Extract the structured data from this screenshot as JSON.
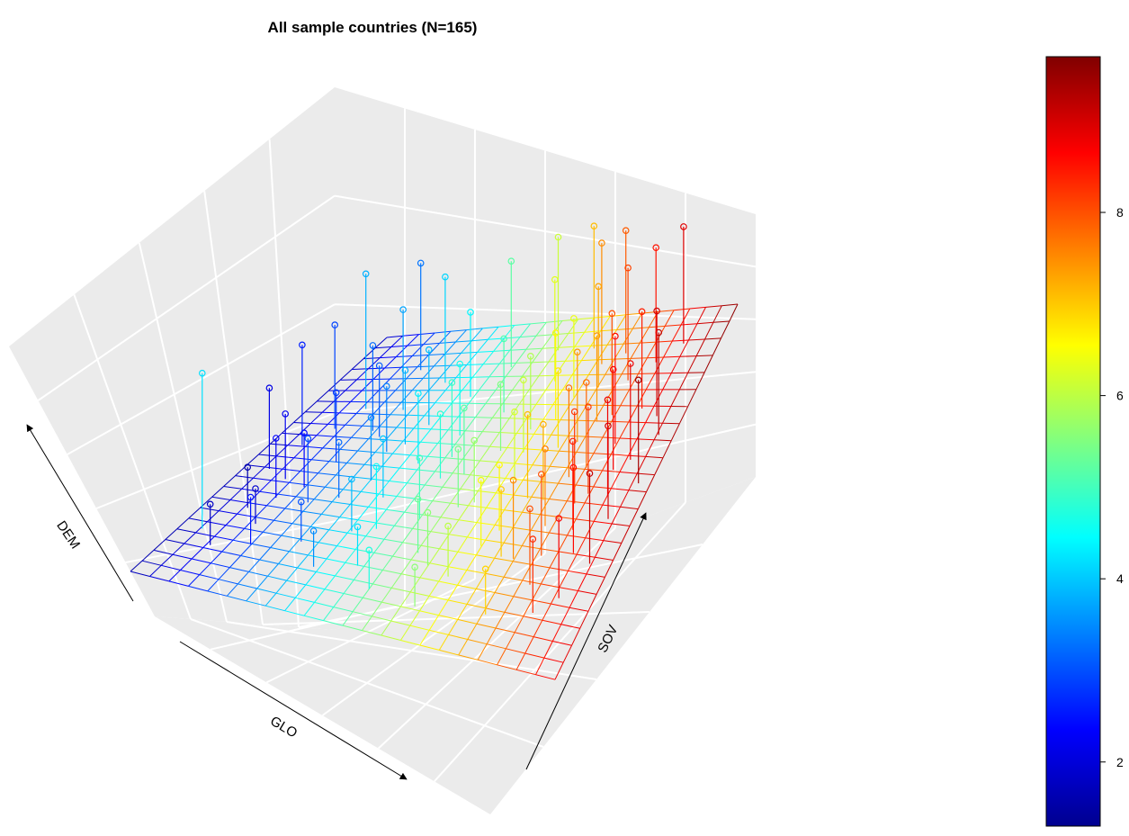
{
  "chart_data": {
    "type": "scatter",
    "title": "All sample countries (N=165)",
    "axes": {
      "x_label": "GLO",
      "y_label": "SOV",
      "z_label": "DEM"
    },
    "grid": true,
    "colorbar": {
      "ticks": [
        "2",
        "4",
        "6",
        "8"
      ],
      "tick_values": [
        2,
        4,
        6,
        8
      ],
      "range": [
        1.3,
        9.7
      ],
      "colors": [
        "#00008F",
        "#0000FF",
        "#0080FF",
        "#00FFFF",
        "#80FF80",
        "#FFFF00",
        "#FF8000",
        "#FF0000",
        "#800000"
      ],
      "placement": "right"
    },
    "points_note": "165 observations with vertical drop lines to fitted regression plane; values estimated visually",
    "points": [
      {
        "glo": 0.1,
        "sov": 0.3,
        "dem": 1.6
      },
      {
        "glo": 0.15,
        "sov": 0.25,
        "dem": 1.9
      },
      {
        "glo": 0.12,
        "sov": 0.42,
        "dem": 2.2
      },
      {
        "glo": 0.18,
        "sov": 0.4,
        "dem": 2.4
      },
      {
        "glo": 0.08,
        "sov": 0.55,
        "dem": 2.6
      },
      {
        "glo": 0.2,
        "sov": 0.5,
        "dem": 2.8
      },
      {
        "glo": 0.22,
        "sov": 0.35,
        "dem": 3.0
      },
      {
        "glo": 0.28,
        "sov": 0.38,
        "dem": 3.2
      },
      {
        "glo": 0.25,
        "sov": 0.6,
        "dem": 3.1
      },
      {
        "glo": 0.3,
        "sov": 0.55,
        "dem": 3.4
      },
      {
        "glo": 0.32,
        "sov": 0.45,
        "dem": 3.6
      },
      {
        "glo": 0.15,
        "sov": 0.7,
        "dem": 3.8
      },
      {
        "glo": 0.35,
        "sov": 0.65,
        "dem": 3.9
      },
      {
        "glo": 0.38,
        "sov": 0.4,
        "dem": 4.0
      },
      {
        "glo": 0.05,
        "sov": 0.2,
        "dem": 4.2
      },
      {
        "glo": 0.4,
        "sov": 0.52,
        "dem": 4.3
      },
      {
        "glo": 0.42,
        "sov": 0.3,
        "dem": 4.5
      },
      {
        "glo": 0.45,
        "sov": 0.62,
        "dem": 4.6
      },
      {
        "glo": 0.48,
        "sov": 0.48,
        "dem": 4.8
      },
      {
        "glo": 0.5,
        "sov": 0.35,
        "dem": 5.0
      },
      {
        "glo": 0.52,
        "sov": 0.7,
        "dem": 5.1
      },
      {
        "glo": 0.55,
        "sov": 0.25,
        "dem": 5.3
      },
      {
        "glo": 0.58,
        "sov": 0.58,
        "dem": 5.5
      },
      {
        "glo": 0.6,
        "sov": 0.42,
        "dem": 5.7
      },
      {
        "glo": 0.62,
        "sov": 0.65,
        "dem": 5.9
      },
      {
        "glo": 0.65,
        "sov": 0.2,
        "dem": 6.0
      },
      {
        "glo": 0.66,
        "sov": 0.5,
        "dem": 6.2
      },
      {
        "glo": 0.68,
        "sov": 0.75,
        "dem": 6.4
      },
      {
        "glo": 0.7,
        "sov": 0.35,
        "dem": 6.6
      },
      {
        "glo": 0.72,
        "sov": 0.6,
        "dem": 6.8
      },
      {
        "glo": 0.74,
        "sov": 0.28,
        "dem": 7.0
      },
      {
        "glo": 0.76,
        "sov": 0.45,
        "dem": 7.2
      },
      {
        "glo": 0.78,
        "sov": 0.68,
        "dem": 7.4
      },
      {
        "glo": 0.8,
        "sov": 0.38,
        "dem": 7.6
      },
      {
        "glo": 0.82,
        "sov": 0.55,
        "dem": 7.8
      },
      {
        "glo": 0.84,
        "sov": 0.22,
        "dem": 8.0
      },
      {
        "glo": 0.86,
        "sov": 0.48,
        "dem": 8.2
      },
      {
        "glo": 0.88,
        "sov": 0.72,
        "dem": 8.4
      },
      {
        "glo": 0.9,
        "sov": 0.32,
        "dem": 8.6
      },
      {
        "glo": 0.92,
        "sov": 0.58,
        "dem": 8.8
      },
      {
        "glo": 0.94,
        "sov": 0.42,
        "dem": 9.0
      },
      {
        "glo": 0.96,
        "sov": 0.65,
        "dem": 9.2
      },
      {
        "glo": 0.85,
        "sov": 0.85,
        "dem": 8.5
      },
      {
        "glo": 0.9,
        "sov": 0.9,
        "dem": 8.9
      },
      {
        "glo": 0.75,
        "sov": 0.88,
        "dem": 7.9
      },
      {
        "glo": 0.8,
        "sov": 0.8,
        "dem": 8.1
      },
      {
        "glo": 0.7,
        "sov": 0.85,
        "dem": 7.5
      },
      {
        "glo": 0.65,
        "sov": 0.9,
        "dem": 7.1
      },
      {
        "glo": 0.45,
        "sov": 0.85,
        "dem": 5.2
      },
      {
        "glo": 0.3,
        "sov": 0.8,
        "dem": 4.1
      },
      {
        "glo": 0.2,
        "sov": 0.85,
        "dem": 3.3
      },
      {
        "glo": 0.55,
        "sov": 0.9,
        "dem": 6.1
      },
      {
        "glo": 0.35,
        "sov": 0.15,
        "dem": 3.5
      },
      {
        "glo": 0.5,
        "sov": 0.12,
        "dem": 4.7
      },
      {
        "glo": 0.62,
        "sov": 0.1,
        "dem": 5.6
      },
      {
        "glo": 0.78,
        "sov": 0.12,
        "dem": 6.9
      },
      {
        "glo": 0.88,
        "sov": 0.15,
        "dem": 8.3
      },
      {
        "glo": 0.92,
        "sov": 0.2,
        "dem": 8.7
      },
      {
        "glo": 0.95,
        "sov": 0.3,
        "dem": 9.1
      },
      {
        "glo": 0.83,
        "sov": 0.3,
        "dem": 8.0
      },
      {
        "glo": 0.86,
        "sov": 0.62,
        "dem": 8.6
      },
      {
        "glo": 0.79,
        "sov": 0.52,
        "dem": 7.7
      },
      {
        "glo": 0.72,
        "sov": 0.45,
        "dem": 7.1
      },
      {
        "glo": 0.68,
        "sov": 0.3,
        "dem": 6.5
      },
      {
        "glo": 0.6,
        "sov": 0.8,
        "dem": 6.3
      },
      {
        "glo": 0.4,
        "sov": 0.75,
        "dem": 4.4
      },
      {
        "glo": 0.25,
        "sov": 0.7,
        "dem": 3.7
      },
      {
        "glo": 0.12,
        "sov": 0.62,
        "dem": 2.9
      },
      {
        "glo": 0.06,
        "sov": 0.45,
        "dem": 2.1
      },
      {
        "glo": 0.18,
        "sov": 0.18,
        "dem": 2.5
      },
      {
        "glo": 0.28,
        "sov": 0.22,
        "dem": 3.0
      },
      {
        "glo": 0.44,
        "sov": 0.18,
        "dem": 4.2
      },
      {
        "glo": 0.57,
        "sov": 0.4,
        "dem": 5.4
      },
      {
        "glo": 0.64,
        "sov": 0.58,
        "dem": 6.1
      },
      {
        "glo": 0.76,
        "sov": 0.62,
        "dem": 7.4
      },
      {
        "glo": 0.87,
        "sov": 0.38,
        "dem": 8.4
      },
      {
        "glo": 0.91,
        "sov": 0.48,
        "dem": 8.8
      },
      {
        "glo": 0.97,
        "sov": 0.52,
        "dem": 9.4
      },
      {
        "glo": 0.93,
        "sov": 0.7,
        "dem": 9.0
      },
      {
        "glo": 0.81,
        "sov": 0.7,
        "dem": 8.0
      },
      {
        "glo": 0.73,
        "sov": 0.78,
        "dem": 7.3
      },
      {
        "glo": 0.47,
        "sov": 0.55,
        "dem": 4.9
      },
      {
        "glo": 0.33,
        "sov": 0.58,
        "dem": 3.8
      },
      {
        "glo": 0.22,
        "sov": 0.62,
        "dem": 3.2
      },
      {
        "glo": 0.14,
        "sov": 0.35,
        "dem": 2.3
      },
      {
        "glo": 0.1,
        "sov": 0.15,
        "dem": 1.8
      },
      {
        "glo": 0.37,
        "sov": 0.28,
        "dem": 3.9
      },
      {
        "glo": 0.53,
        "sov": 0.5,
        "dem": 5.2
      },
      {
        "glo": 0.59,
        "sov": 0.22,
        "dem": 5.6
      },
      {
        "glo": 0.67,
        "sov": 0.68,
        "dem": 6.6
      },
      {
        "glo": 0.77,
        "sov": 0.28,
        "dem": 7.5
      },
      {
        "glo": 0.84,
        "sov": 0.45,
        "dem": 8.2
      },
      {
        "glo": 0.89,
        "sov": 0.55,
        "dem": 8.7
      }
    ]
  }
}
